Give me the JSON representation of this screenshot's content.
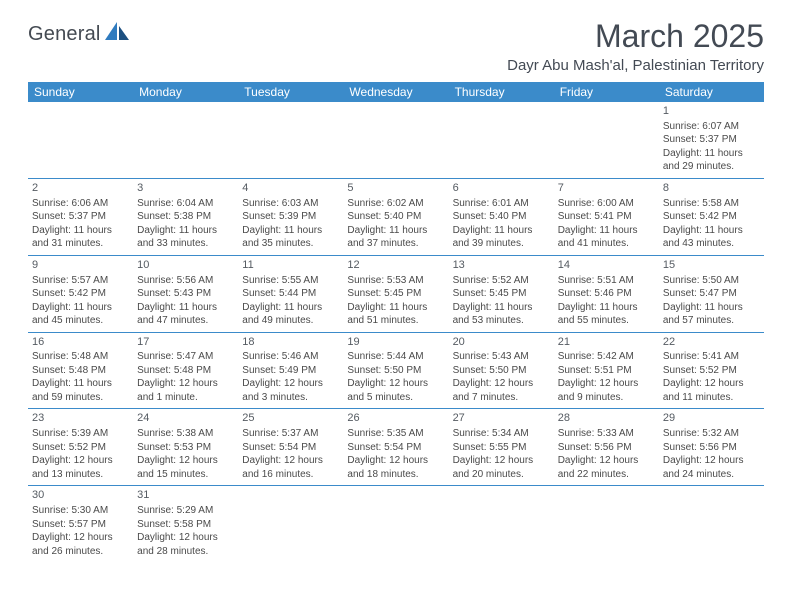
{
  "logo": {
    "text": "General",
    "shape_fill": "#2f7bbf",
    "shape_dark": "#1c4f80"
  },
  "title": "March 2025",
  "location": "Dayr Abu Mash'al, Palestinian Territory",
  "colors": {
    "header_bg": "#3b8bca",
    "header_text": "#ffffff",
    "divider": "#3b8bca",
    "body_text": "#4a4a4a",
    "title_text": "#434a54"
  },
  "weekdays": [
    "Sunday",
    "Monday",
    "Tuesday",
    "Wednesday",
    "Thursday",
    "Friday",
    "Saturday"
  ],
  "weeks": [
    [
      null,
      null,
      null,
      null,
      null,
      null,
      {
        "n": "1",
        "sr": "Sunrise: 6:07 AM",
        "ss": "Sunset: 5:37 PM",
        "d1": "Daylight: 11 hours",
        "d2": "and 29 minutes."
      }
    ],
    [
      {
        "n": "2",
        "sr": "Sunrise: 6:06 AM",
        "ss": "Sunset: 5:37 PM",
        "d1": "Daylight: 11 hours",
        "d2": "and 31 minutes."
      },
      {
        "n": "3",
        "sr": "Sunrise: 6:04 AM",
        "ss": "Sunset: 5:38 PM",
        "d1": "Daylight: 11 hours",
        "d2": "and 33 minutes."
      },
      {
        "n": "4",
        "sr": "Sunrise: 6:03 AM",
        "ss": "Sunset: 5:39 PM",
        "d1": "Daylight: 11 hours",
        "d2": "and 35 minutes."
      },
      {
        "n": "5",
        "sr": "Sunrise: 6:02 AM",
        "ss": "Sunset: 5:40 PM",
        "d1": "Daylight: 11 hours",
        "d2": "and 37 minutes."
      },
      {
        "n": "6",
        "sr": "Sunrise: 6:01 AM",
        "ss": "Sunset: 5:40 PM",
        "d1": "Daylight: 11 hours",
        "d2": "and 39 minutes."
      },
      {
        "n": "7",
        "sr": "Sunrise: 6:00 AM",
        "ss": "Sunset: 5:41 PM",
        "d1": "Daylight: 11 hours",
        "d2": "and 41 minutes."
      },
      {
        "n": "8",
        "sr": "Sunrise: 5:58 AM",
        "ss": "Sunset: 5:42 PM",
        "d1": "Daylight: 11 hours",
        "d2": "and 43 minutes."
      }
    ],
    [
      {
        "n": "9",
        "sr": "Sunrise: 5:57 AM",
        "ss": "Sunset: 5:42 PM",
        "d1": "Daylight: 11 hours",
        "d2": "and 45 minutes."
      },
      {
        "n": "10",
        "sr": "Sunrise: 5:56 AM",
        "ss": "Sunset: 5:43 PM",
        "d1": "Daylight: 11 hours",
        "d2": "and 47 minutes."
      },
      {
        "n": "11",
        "sr": "Sunrise: 5:55 AM",
        "ss": "Sunset: 5:44 PM",
        "d1": "Daylight: 11 hours",
        "d2": "and 49 minutes."
      },
      {
        "n": "12",
        "sr": "Sunrise: 5:53 AM",
        "ss": "Sunset: 5:45 PM",
        "d1": "Daylight: 11 hours",
        "d2": "and 51 minutes."
      },
      {
        "n": "13",
        "sr": "Sunrise: 5:52 AM",
        "ss": "Sunset: 5:45 PM",
        "d1": "Daylight: 11 hours",
        "d2": "and 53 minutes."
      },
      {
        "n": "14",
        "sr": "Sunrise: 5:51 AM",
        "ss": "Sunset: 5:46 PM",
        "d1": "Daylight: 11 hours",
        "d2": "and 55 minutes."
      },
      {
        "n": "15",
        "sr": "Sunrise: 5:50 AM",
        "ss": "Sunset: 5:47 PM",
        "d1": "Daylight: 11 hours",
        "d2": "and 57 minutes."
      }
    ],
    [
      {
        "n": "16",
        "sr": "Sunrise: 5:48 AM",
        "ss": "Sunset: 5:48 PM",
        "d1": "Daylight: 11 hours",
        "d2": "and 59 minutes."
      },
      {
        "n": "17",
        "sr": "Sunrise: 5:47 AM",
        "ss": "Sunset: 5:48 PM",
        "d1": "Daylight: 12 hours",
        "d2": "and 1 minute."
      },
      {
        "n": "18",
        "sr": "Sunrise: 5:46 AM",
        "ss": "Sunset: 5:49 PM",
        "d1": "Daylight: 12 hours",
        "d2": "and 3 minutes."
      },
      {
        "n": "19",
        "sr": "Sunrise: 5:44 AM",
        "ss": "Sunset: 5:50 PM",
        "d1": "Daylight: 12 hours",
        "d2": "and 5 minutes."
      },
      {
        "n": "20",
        "sr": "Sunrise: 5:43 AM",
        "ss": "Sunset: 5:50 PM",
        "d1": "Daylight: 12 hours",
        "d2": "and 7 minutes."
      },
      {
        "n": "21",
        "sr": "Sunrise: 5:42 AM",
        "ss": "Sunset: 5:51 PM",
        "d1": "Daylight: 12 hours",
        "d2": "and 9 minutes."
      },
      {
        "n": "22",
        "sr": "Sunrise: 5:41 AM",
        "ss": "Sunset: 5:52 PM",
        "d1": "Daylight: 12 hours",
        "d2": "and 11 minutes."
      }
    ],
    [
      {
        "n": "23",
        "sr": "Sunrise: 5:39 AM",
        "ss": "Sunset: 5:52 PM",
        "d1": "Daylight: 12 hours",
        "d2": "and 13 minutes."
      },
      {
        "n": "24",
        "sr": "Sunrise: 5:38 AM",
        "ss": "Sunset: 5:53 PM",
        "d1": "Daylight: 12 hours",
        "d2": "and 15 minutes."
      },
      {
        "n": "25",
        "sr": "Sunrise: 5:37 AM",
        "ss": "Sunset: 5:54 PM",
        "d1": "Daylight: 12 hours",
        "d2": "and 16 minutes."
      },
      {
        "n": "26",
        "sr": "Sunrise: 5:35 AM",
        "ss": "Sunset: 5:54 PM",
        "d1": "Daylight: 12 hours",
        "d2": "and 18 minutes."
      },
      {
        "n": "27",
        "sr": "Sunrise: 5:34 AM",
        "ss": "Sunset: 5:55 PM",
        "d1": "Daylight: 12 hours",
        "d2": "and 20 minutes."
      },
      {
        "n": "28",
        "sr": "Sunrise: 5:33 AM",
        "ss": "Sunset: 5:56 PM",
        "d1": "Daylight: 12 hours",
        "d2": "and 22 minutes."
      },
      {
        "n": "29",
        "sr": "Sunrise: 5:32 AM",
        "ss": "Sunset: 5:56 PM",
        "d1": "Daylight: 12 hours",
        "d2": "and 24 minutes."
      }
    ],
    [
      {
        "n": "30",
        "sr": "Sunrise: 5:30 AM",
        "ss": "Sunset: 5:57 PM",
        "d1": "Daylight: 12 hours",
        "d2": "and 26 minutes."
      },
      {
        "n": "31",
        "sr": "Sunrise: 5:29 AM",
        "ss": "Sunset: 5:58 PM",
        "d1": "Daylight: 12 hours",
        "d2": "and 28 minutes."
      },
      null,
      null,
      null,
      null,
      null
    ]
  ]
}
